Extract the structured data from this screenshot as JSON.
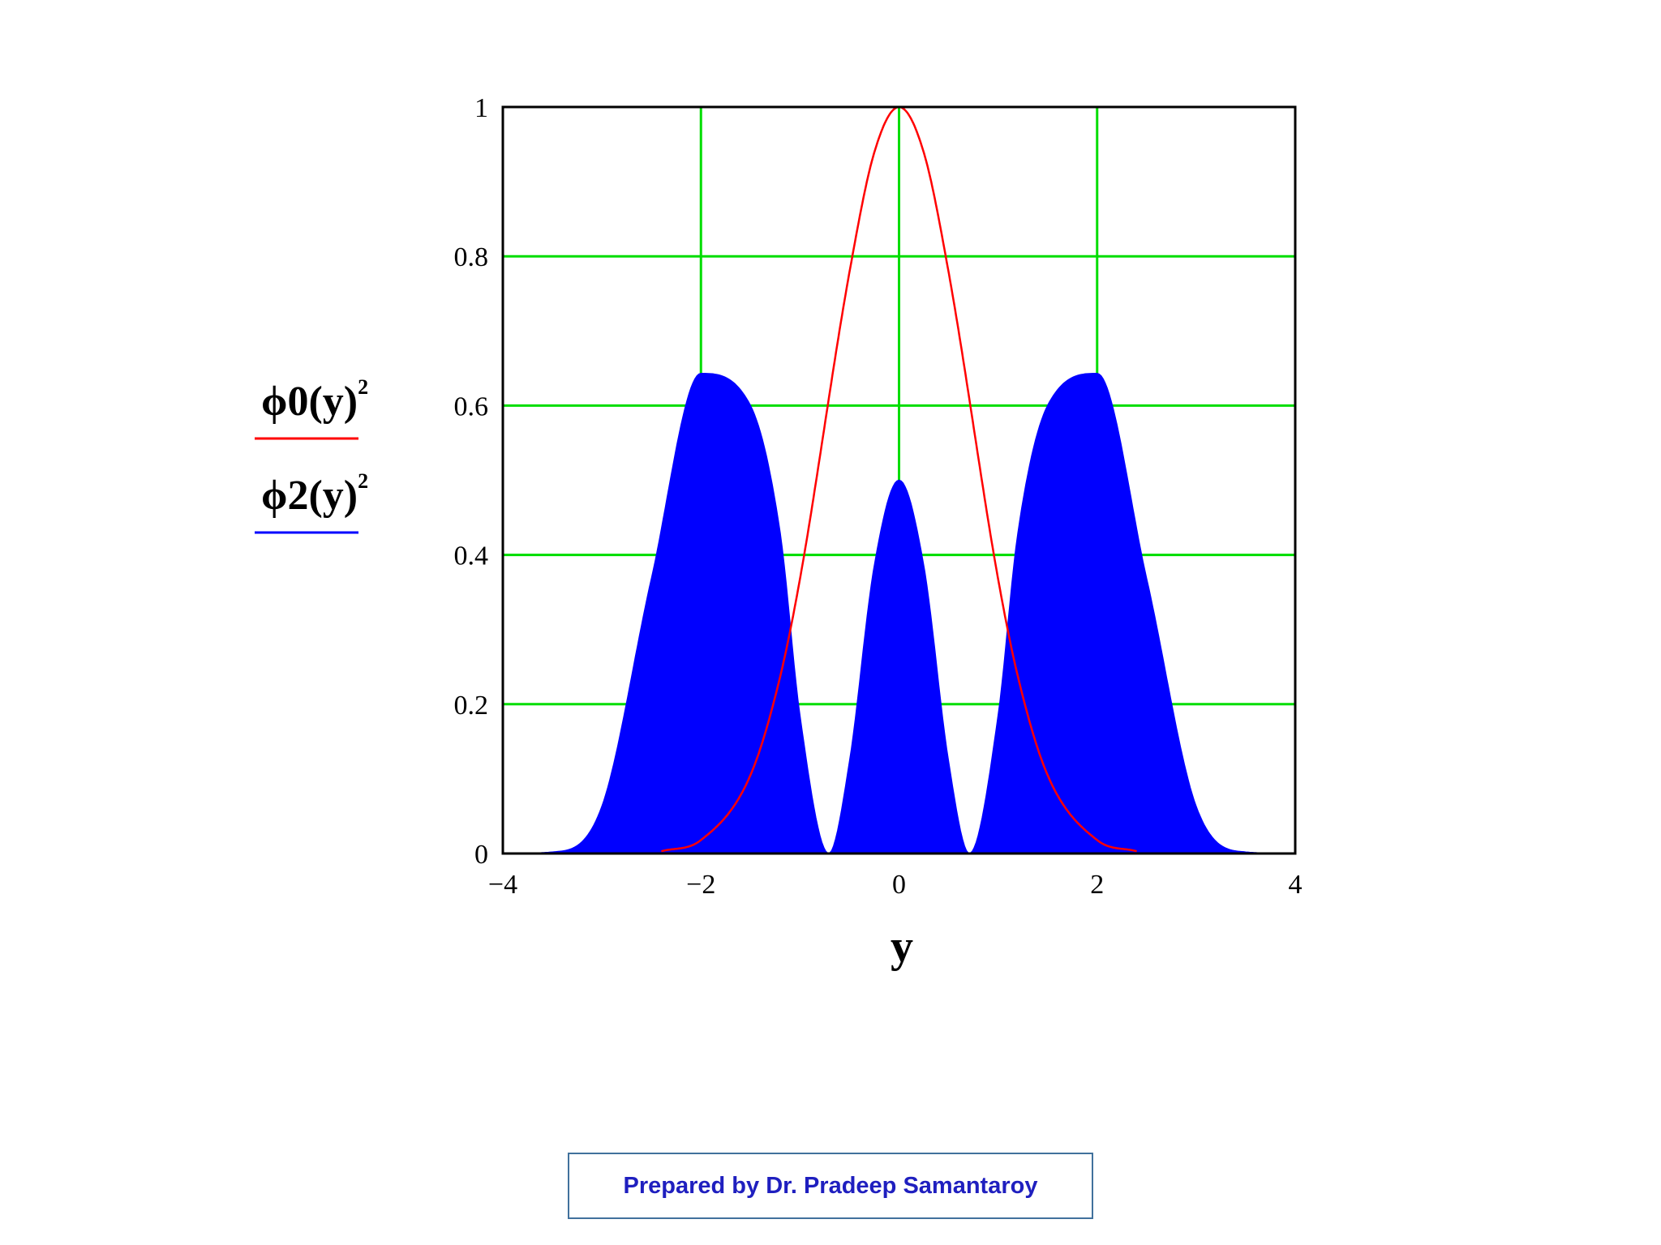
{
  "chart_data": {
    "type": "area",
    "xlabel": "y",
    "ylabel": "",
    "xlim": [
      -4,
      4
    ],
    "ylim": [
      0,
      1
    ],
    "xticks": [
      -4,
      -2,
      0,
      2,
      4
    ],
    "xtick_labels": [
      "−4",
      "−2",
      "0",
      "2",
      "4"
    ],
    "yticks": [
      0,
      0.2,
      0.4,
      0.6,
      0.8,
      1
    ],
    "ytick_labels": [
      "0",
      "0.2",
      "0.4",
      "0.6",
      "0.8",
      "1"
    ],
    "grid": true,
    "grid_color": "#00dd00",
    "legend_position": "left",
    "x": [
      -4.0,
      -3.5,
      -3.0,
      -2.5,
      -2.0,
      -1.5,
      -1.2,
      -1.0,
      -0.71,
      -0.5,
      -0.25,
      0.0,
      0.25,
      0.5,
      0.71,
      1.0,
      1.2,
      1.5,
      2.0,
      2.5,
      3.0,
      3.5,
      4.0
    ],
    "series": [
      {
        "name": "ϕ0(y)",
        "name_sup": "2",
        "style": "line",
        "color": "#ff0000",
        "x": [
          -2.4,
          -2.0,
          -1.5,
          -1.2,
          -1.0,
          -0.5,
          -0.25,
          0.0,
          0.25,
          0.5,
          1.0,
          1.2,
          1.5,
          2.0,
          2.4
        ],
        "values": [
          0.003,
          0.018,
          0.105,
          0.237,
          0.368,
          0.779,
          0.939,
          1.0,
          0.939,
          0.779,
          0.368,
          0.237,
          0.105,
          0.018,
          0.003
        ]
      },
      {
        "name": "ϕ2(y)",
        "name_sup": "2",
        "style": "filled",
        "color": "#0000ff",
        "values": [
          0.0,
          0.002,
          0.063,
          0.368,
          0.643,
          0.6,
          0.429,
          0.184,
          0.0,
          0.123,
          0.385,
          0.5,
          0.385,
          0.123,
          0.0,
          0.184,
          0.429,
          0.6,
          0.643,
          0.368,
          0.063,
          0.002,
          0.0
        ]
      }
    ]
  },
  "footer": {
    "text": "Prepared by Dr. Pradeep Samantaroy"
  }
}
